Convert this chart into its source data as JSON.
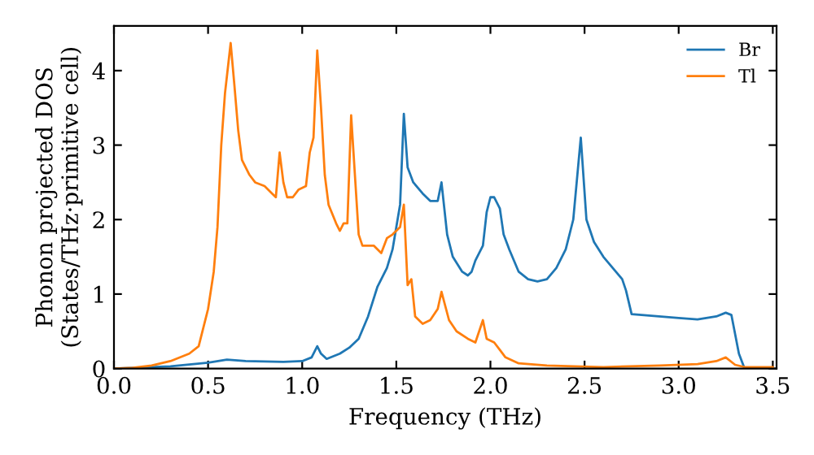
{
  "chart_data": {
    "type": "line",
    "xlabel": "Frequency (THz)",
    "ylabel": "Phonon projected DOS\n(States/THz·primitive cell)",
    "xlim": [
      0,
      3.52
    ],
    "ylim": [
      0,
      4.6
    ],
    "xticks": [
      {
        "value": 0,
        "label": "0.0"
      },
      0.5,
      {
        "value": 1,
        "label": "1.0"
      },
      1.5,
      {
        "value": 2,
        "label": "2.0"
      },
      2.5,
      {
        "value": 3,
        "label": "3.0"
      },
      3.5
    ],
    "yticks": [
      0,
      1,
      2,
      3,
      4
    ],
    "grid": false,
    "legend": "top right",
    "marker": "none",
    "line_style": "solid",
    "series": [
      {
        "name": "Br",
        "color": "#1f77b4",
        "x": [
          0,
          0.3,
          0.5,
          0.6,
          0.7,
          0.9,
          1.0,
          1.05,
          1.08,
          1.1,
          1.13,
          1.2,
          1.25,
          1.3,
          1.35,
          1.4,
          1.45,
          1.48,
          1.5,
          1.52,
          1.54,
          1.56,
          1.59,
          1.64,
          1.68,
          1.72,
          1.74,
          1.77,
          1.8,
          1.85,
          1.88,
          1.9,
          1.92,
          1.96,
          1.98,
          2.0,
          2.02,
          2.05,
          2.07,
          2.1,
          2.15,
          2.2,
          2.25,
          2.3,
          2.35,
          2.4,
          2.44,
          2.48,
          2.51,
          2.55,
          2.6,
          2.65,
          2.7,
          2.72,
          2.75,
          3.0,
          3.1,
          3.2,
          3.25,
          3.28,
          3.32,
          3.35,
          3.5
        ],
        "values": [
          0,
          0.03,
          0.08,
          0.12,
          0.1,
          0.09,
          0.1,
          0.15,
          0.3,
          0.2,
          0.13,
          0.2,
          0.28,
          0.4,
          0.7,
          1.1,
          1.35,
          1.6,
          1.9,
          2.2,
          3.42,
          2.7,
          2.5,
          2.35,
          2.25,
          2.25,
          2.5,
          1.8,
          1.5,
          1.3,
          1.25,
          1.3,
          1.45,
          1.65,
          2.1,
          2.3,
          2.3,
          2.15,
          1.8,
          1.6,
          1.3,
          1.2,
          1.17,
          1.2,
          1.35,
          1.6,
          2.0,
          3.1,
          2.0,
          1.7,
          1.5,
          1.35,
          1.2,
          1.05,
          0.73,
          0.68,
          0.66,
          0.7,
          0.75,
          0.72,
          0.2,
          0,
          0
        ]
      },
      {
        "name": "Tl",
        "color": "#ff7f0e",
        "x": [
          0,
          0.1,
          0.2,
          0.3,
          0.4,
          0.45,
          0.5,
          0.53,
          0.55,
          0.57,
          0.59,
          0.62,
          0.64,
          0.66,
          0.68,
          0.72,
          0.75,
          0.8,
          0.84,
          0.86,
          0.88,
          0.9,
          0.92,
          0.95,
          0.98,
          1.02,
          1.04,
          1.06,
          1.08,
          1.1,
          1.12,
          1.14,
          1.18,
          1.2,
          1.22,
          1.24,
          1.26,
          1.28,
          1.3,
          1.32,
          1.38,
          1.42,
          1.45,
          1.48,
          1.52,
          1.54,
          1.56,
          1.58,
          1.6,
          1.64,
          1.68,
          1.72,
          1.74,
          1.78,
          1.82,
          1.88,
          1.92,
          1.96,
          1.98,
          2.02,
          2.05,
          2.08,
          2.15,
          2.3,
          2.6,
          2.9,
          3.1,
          3.2,
          3.25,
          3.3,
          3.35,
          3.5
        ],
        "values": [
          0,
          0.01,
          0.04,
          0.1,
          0.2,
          0.3,
          0.8,
          1.3,
          1.9,
          3.0,
          3.7,
          4.37,
          3.8,
          3.2,
          2.8,
          2.6,
          2.5,
          2.45,
          2.35,
          2.3,
          2.9,
          2.5,
          2.3,
          2.3,
          2.4,
          2.45,
          2.9,
          3.1,
          4.27,
          3.5,
          2.6,
          2.2,
          1.95,
          1.85,
          1.95,
          1.95,
          3.4,
          2.6,
          1.8,
          1.65,
          1.65,
          1.55,
          1.75,
          1.8,
          1.9,
          2.2,
          1.12,
          1.2,
          0.7,
          0.6,
          0.65,
          0.8,
          1.03,
          0.65,
          0.5,
          0.4,
          0.35,
          0.65,
          0.4,
          0.35,
          0.25,
          0.15,
          0.07,
          0.04,
          0.02,
          0.04,
          0.06,
          0.1,
          0.15,
          0.05,
          0.02,
          0.02
        ]
      }
    ]
  }
}
